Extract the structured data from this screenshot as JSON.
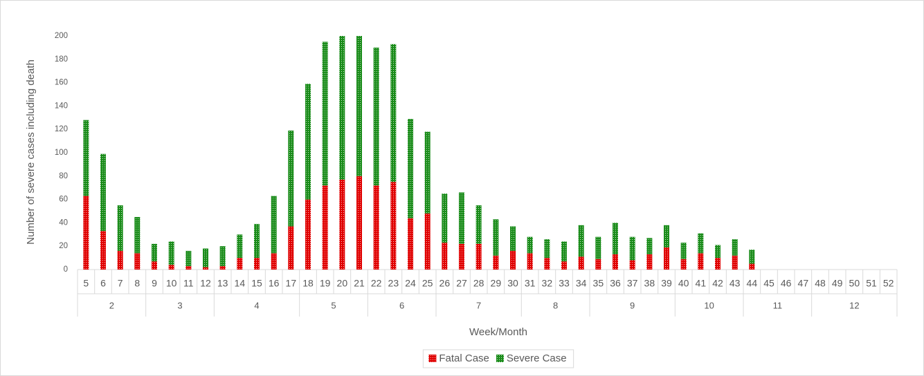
{
  "chart_data": {
    "type": "stacked-bar",
    "y_label": "Number of severe cases including death",
    "x_label": "Week/Month",
    "categories": [
      "5",
      "6",
      "7",
      "8",
      "9",
      "10",
      "11",
      "12",
      "13",
      "14",
      "15",
      "16",
      "17",
      "18",
      "19",
      "20",
      "21",
      "22",
      "23",
      "24",
      "25",
      "26",
      "27",
      "28",
      "29",
      "30",
      "31",
      "32",
      "33",
      "34",
      "35",
      "36",
      "37",
      "38",
      "39",
      "40",
      "41",
      "42",
      "43",
      "44",
      "45",
      "46",
      "47",
      "48",
      "49",
      "50",
      "51",
      "52"
    ],
    "months": [
      "2",
      "2",
      "2",
      "2",
      "3",
      "3",
      "3",
      "3",
      "4",
      "4",
      "4",
      "4",
      "4",
      "5",
      "5",
      "5",
      "5",
      "6",
      "6",
      "6",
      "6",
      "7",
      "7",
      "7",
      "7",
      "7",
      "8",
      "8",
      "8",
      "8",
      "9",
      "9",
      "9",
      "9",
      "9",
      "10",
      "10",
      "10",
      "10",
      "11",
      "11",
      "11",
      "11",
      "12",
      "12",
      "12",
      "12",
      "12"
    ],
    "series": [
      {
        "name": "Fatal Case",
        "color": "#e00000",
        "values": [
          63,
          33,
          16,
          14,
          7,
          4,
          3,
          2,
          3,
          10,
          10,
          14,
          37,
          60,
          72,
          77,
          80,
          72,
          75,
          44,
          48,
          23,
          22,
          22,
          12,
          16,
          14,
          10,
          7,
          11,
          9,
          13,
          8,
          13,
          19,
          9,
          14,
          10,
          12,
          5,
          null,
          null,
          null,
          null,
          null,
          null,
          null,
          null
        ]
      },
      {
        "name": "Severe Case",
        "color": "#1a8c1a",
        "values": [
          65,
          66,
          39,
          31,
          15,
          20,
          13,
          16,
          17,
          20,
          29,
          49,
          82,
          99,
          123,
          123,
          120,
          118,
          118,
          85,
          70,
          42,
          44,
          33,
          31,
          21,
          14,
          16,
          17,
          27,
          19,
          27,
          20,
          14,
          19,
          14,
          17,
          11,
          14,
          12,
          null,
          null,
          null,
          null,
          null,
          null,
          null,
          null
        ]
      }
    ],
    "ylim": [
      0,
      200
    ],
    "yticks": [
      0,
      20,
      40,
      60,
      80,
      100,
      120,
      140,
      160,
      180,
      200
    ],
    "grid": false,
    "legend": "bottom"
  }
}
